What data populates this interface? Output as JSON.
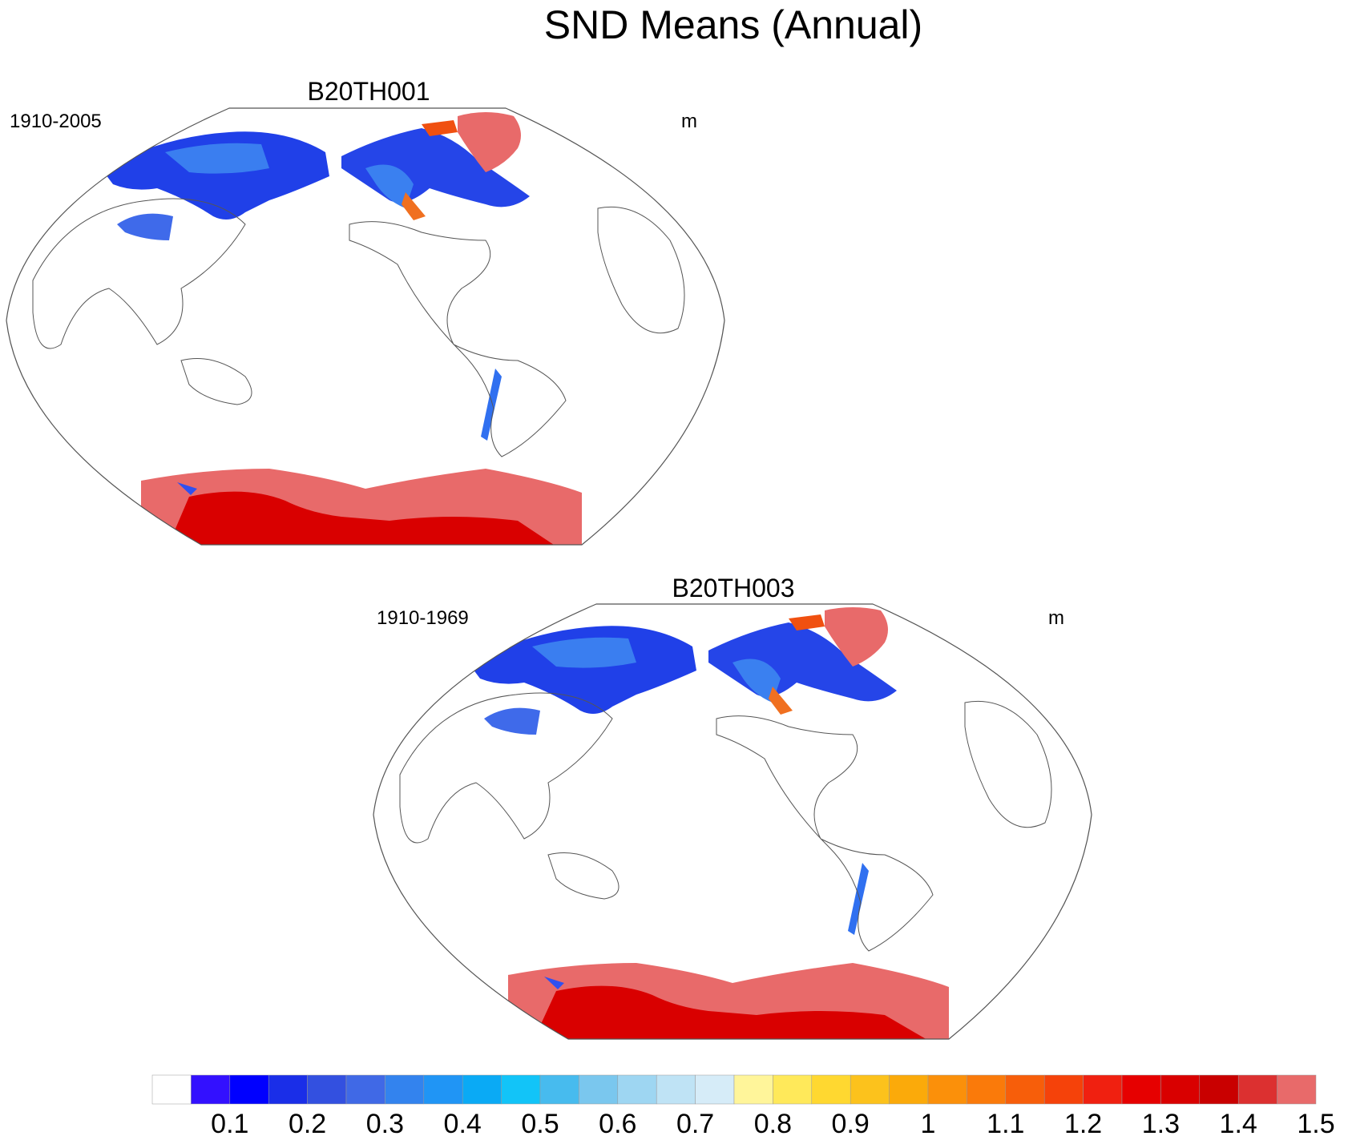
{
  "title": "SND Means (Annual)",
  "panels": [
    {
      "title": "B20TH001",
      "left_label": "1910-2005",
      "right_label": "m"
    },
    {
      "title": "B20TH003",
      "left_label": "1910-1969",
      "right_label": "m"
    }
  ],
  "colorbar": {
    "labels": [
      "0.1",
      "0.2",
      "0.3",
      "0.4",
      "0.5",
      "0.6",
      "0.7",
      "0.8",
      "0.9",
      "1",
      "1.1",
      "1.2",
      "1.3",
      "1.4",
      "1.5"
    ],
    "colors": [
      "#ffffff",
      "#3310ff",
      "#0000ff",
      "#1a2ee8",
      "#3350e0",
      "#4069e6",
      "#3383ee",
      "#2095f5",
      "#0aaaf5",
      "#12c4f8",
      "#47bbee",
      "#7ac7ee",
      "#9ed6f2",
      "#bfe3f5",
      "#d6ecf8",
      "#fff59a",
      "#ffe95a",
      "#ffd830",
      "#fcc21c",
      "#fbaa0a",
      "#fb900a",
      "#fa7a0a",
      "#f75e0a",
      "#f5420a",
      "#f02010",
      "#e60000",
      "#d90000",
      "#c90000",
      "#dc3030",
      "#e86a6a"
    ]
  }
}
